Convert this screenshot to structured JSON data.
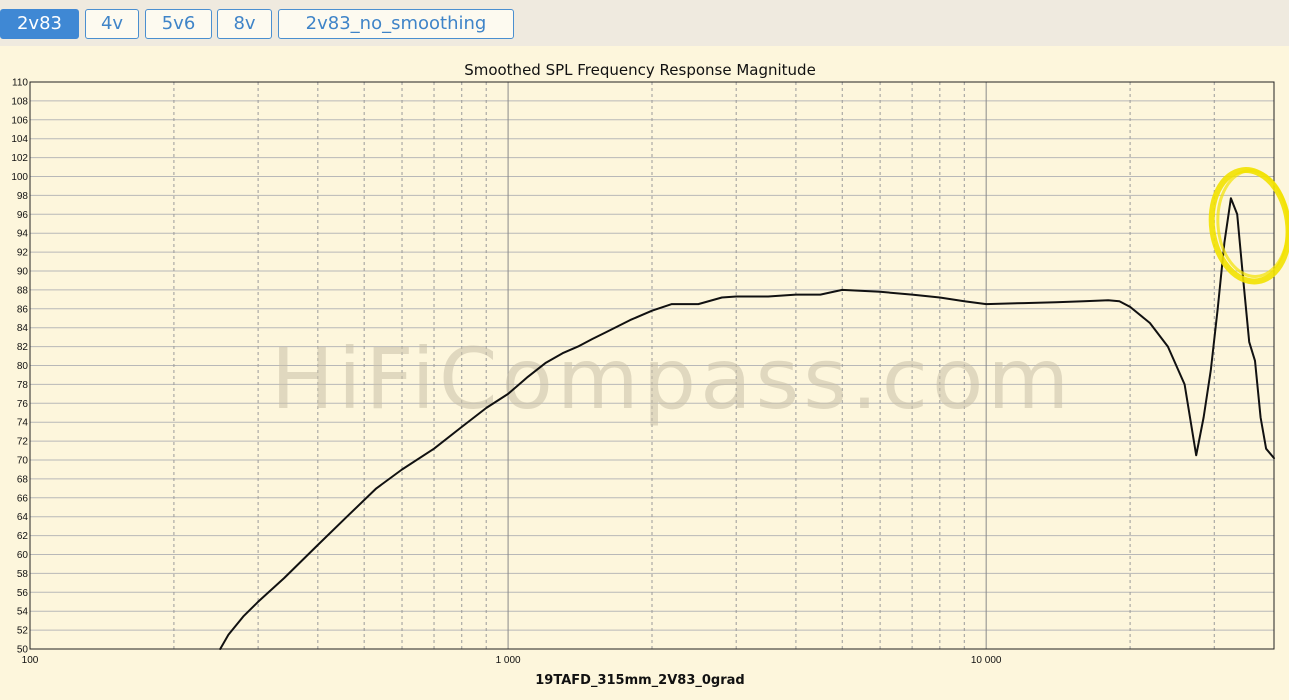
{
  "tabs": [
    {
      "label": "2v83",
      "active": true
    },
    {
      "label": "4v",
      "active": false
    },
    {
      "label": "5v6",
      "active": false
    },
    {
      "label": "8v",
      "active": false
    },
    {
      "label": "2v83_no_smoothing",
      "active": false
    }
  ],
  "watermark": "HiFiCompass.com",
  "colors": {
    "background": "#fdf6dc",
    "tab_accent": "#3f88d4",
    "curve": "#111111",
    "highlight_circle": "#f2e200"
  },
  "chart_data": {
    "type": "line",
    "title": "Smoothed SPL Frequency Response Magnitude",
    "xlabel": "19TAFD_315mm_2V83_0grad",
    "ylabel": "",
    "x_scale": "log",
    "xlim": [
      100,
      40000
    ],
    "ylim": [
      50,
      110
    ],
    "grid": true,
    "yticks": [
      "50",
      "52",
      "54",
      "56",
      "58",
      "60",
      "62",
      "64",
      "66",
      "68",
      "70",
      "72",
      "74",
      "76",
      "78",
      "80",
      "82",
      "84",
      "86",
      "88",
      "90",
      "92",
      "94",
      "96",
      "98",
      "100",
      "102",
      "104",
      "106",
      "108",
      "110"
    ],
    "xticks": [
      {
        "value": 100,
        "label": "100"
      },
      {
        "value": 1000,
        "label": "1 000"
      },
      {
        "value": 10000,
        "label": "10 000"
      }
    ],
    "annotation": {
      "type": "hand-drawn circle",
      "around_x": 36000,
      "around_y": 95,
      "color": "#f2e200"
    },
    "series": [
      {
        "x": [
          250,
          260,
          280,
          300,
          340,
          400,
          460,
          530,
          600,
          700,
          800,
          900,
          1000,
          1100,
          1200,
          1300,
          1400,
          1500,
          1600,
          1800,
          2000,
          2200,
          2500,
          2800,
          3000,
          3500,
          4000,
          4500,
          5000,
          6000,
          7000,
          8000,
          9000,
          10000,
          12000,
          14000,
          16000,
          18000,
          19000,
          20000,
          22000,
          24000,
          26000,
          27500,
          28500,
          29500,
          30500,
          31500,
          32500,
          33500,
          34500,
          35500,
          36500,
          37500,
          38500,
          40000
        ],
        "y": [
          50,
          51.5,
          53.5,
          55,
          57.5,
          61,
          64,
          67,
          69,
          71.2,
          73.5,
          75.5,
          77,
          78.8,
          80.3,
          81.3,
          82,
          82.8,
          83.5,
          84.8,
          85.8,
          86.5,
          86.5,
          87.2,
          87.3,
          87.3,
          87.5,
          87.5,
          88,
          87.8,
          87.5,
          87.2,
          86.8,
          86.5,
          86.6,
          86.7,
          86.8,
          86.9,
          86.8,
          86.2,
          84.5,
          82,
          78,
          70.5,
          74.5,
          79.5,
          86,
          93,
          97.7,
          96,
          89,
          82.5,
          80.5,
          74.5,
          71.2,
          70.2
        ]
      }
    ]
  }
}
